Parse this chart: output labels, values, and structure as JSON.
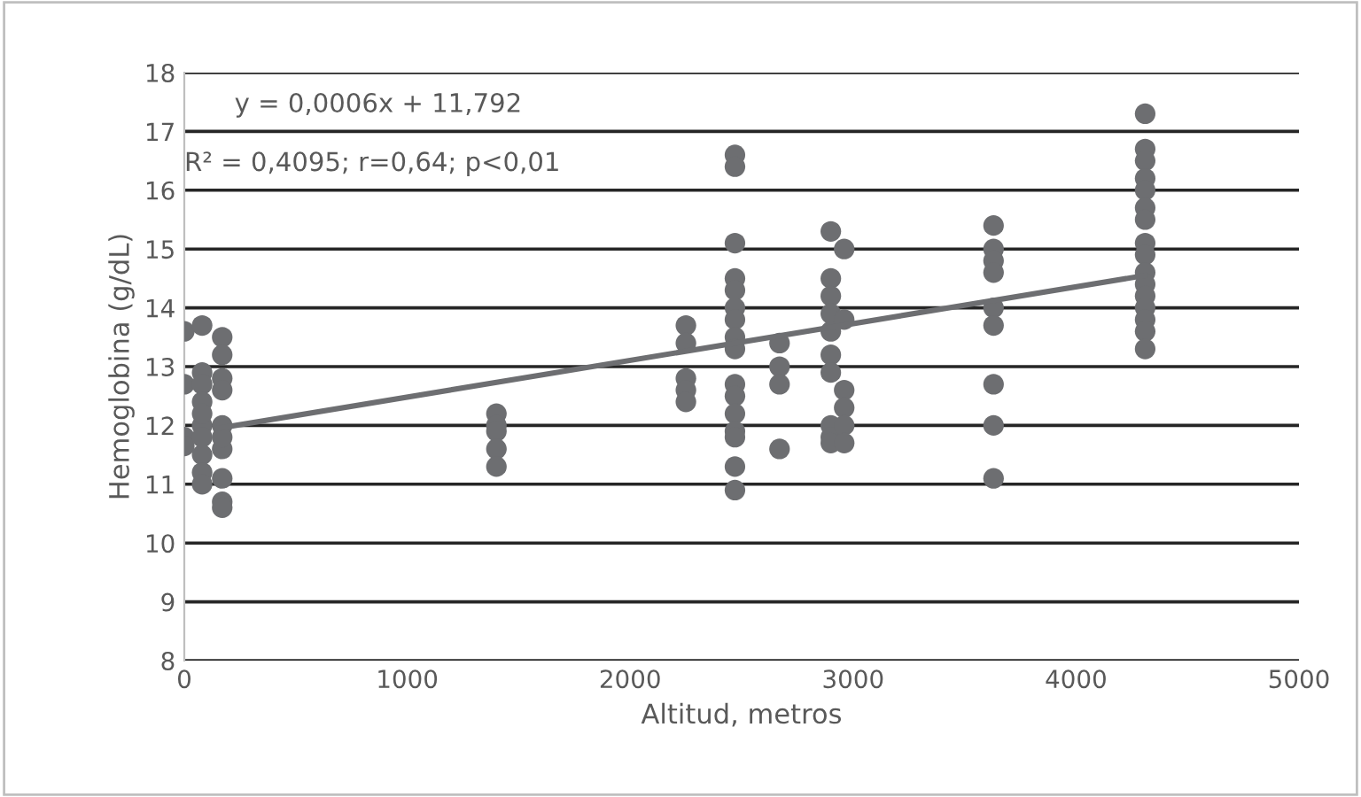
{
  "chart_data": {
    "type": "scatter",
    "xlabel": "Altitud, metros",
    "ylabel": "Hemoglobina (g/dL)",
    "xlim": [
      0,
      5000
    ],
    "xticks": [
      0,
      1000,
      2000,
      3000,
      4000,
      5000
    ],
    "ylim": [
      8,
      18
    ],
    "yticks": [
      8,
      9,
      10,
      11,
      12,
      13,
      14,
      15,
      16,
      17,
      18
    ],
    "grid": "y",
    "legend": false,
    "annotations": [
      "y = 0,0006x + 11,792",
      "R² = 0,4095; r=0,64; p<0,01"
    ],
    "series": [
      {
        "color": "#6d6e71",
        "marker": "circle",
        "x": [
          0,
          0,
          0,
          0,
          80,
          80,
          80,
          80,
          80,
          80,
          80,
          80,
          80,
          80,
          170,
          170,
          170,
          170,
          170,
          170,
          170,
          170,
          170,
          170,
          1400,
          1400,
          1400,
          1400,
          1400,
          2250,
          2250,
          2250,
          2250,
          2250,
          2470,
          2470,
          2470,
          2470,
          2470,
          2470,
          2470,
          2470,
          2470,
          2470,
          2470,
          2470,
          2470,
          2470,
          2470,
          2470,
          2670,
          2670,
          2670,
          2670,
          2900,
          2900,
          2900,
          2900,
          2900,
          2900,
          2900,
          2900,
          2900,
          2900,
          2960,
          2960,
          2960,
          2960,
          2960,
          2960,
          3630,
          3630,
          3630,
          3630,
          3630,
          3630,
          3630,
          3630,
          3630,
          4310,
          4310,
          4310,
          4310,
          4310,
          4310,
          4310,
          4310,
          4310,
          4310,
          4310,
          4310,
          4310,
          4310,
          4310,
          4310
        ],
        "values": [
          13.6,
          12.7,
          11.8,
          11.65,
          13.7,
          12.9,
          12.7,
          12.4,
          12.0,
          11.8,
          11.5,
          11.2,
          11.0,
          12.2,
          13.5,
          13.2,
          12.8,
          12.6,
          12.0,
          11.6,
          11.1,
          10.7,
          10.6,
          11.8,
          12.2,
          12.0,
          11.9,
          11.6,
          11.3,
          13.7,
          13.4,
          12.8,
          12.6,
          12.4,
          16.6,
          16.4,
          15.1,
          14.5,
          14.3,
          14.0,
          13.8,
          13.5,
          13.3,
          12.7,
          12.5,
          12.2,
          11.9,
          11.8,
          11.3,
          10.9,
          13.4,
          13.0,
          12.7,
          11.6,
          15.3,
          14.5,
          14.2,
          13.9,
          13.6,
          13.2,
          12.9,
          12.0,
          11.8,
          11.7,
          15.0,
          13.8,
          12.6,
          12.3,
          12.0,
          11.7,
          15.4,
          15.0,
          14.8,
          14.6,
          14.0,
          13.7,
          12.7,
          12.0,
          11.1,
          17.3,
          16.7,
          16.5,
          16.2,
          16.0,
          15.7,
          15.5,
          15.1,
          14.9,
          14.6,
          14.4,
          14.2,
          14.0,
          13.8,
          13.6,
          13.3
        ]
      },
      {
        "type": "line",
        "color": "#6d6e71",
        "x": [
          150,
          4310
        ],
        "values": [
          11.95,
          14.55
        ]
      }
    ]
  }
}
